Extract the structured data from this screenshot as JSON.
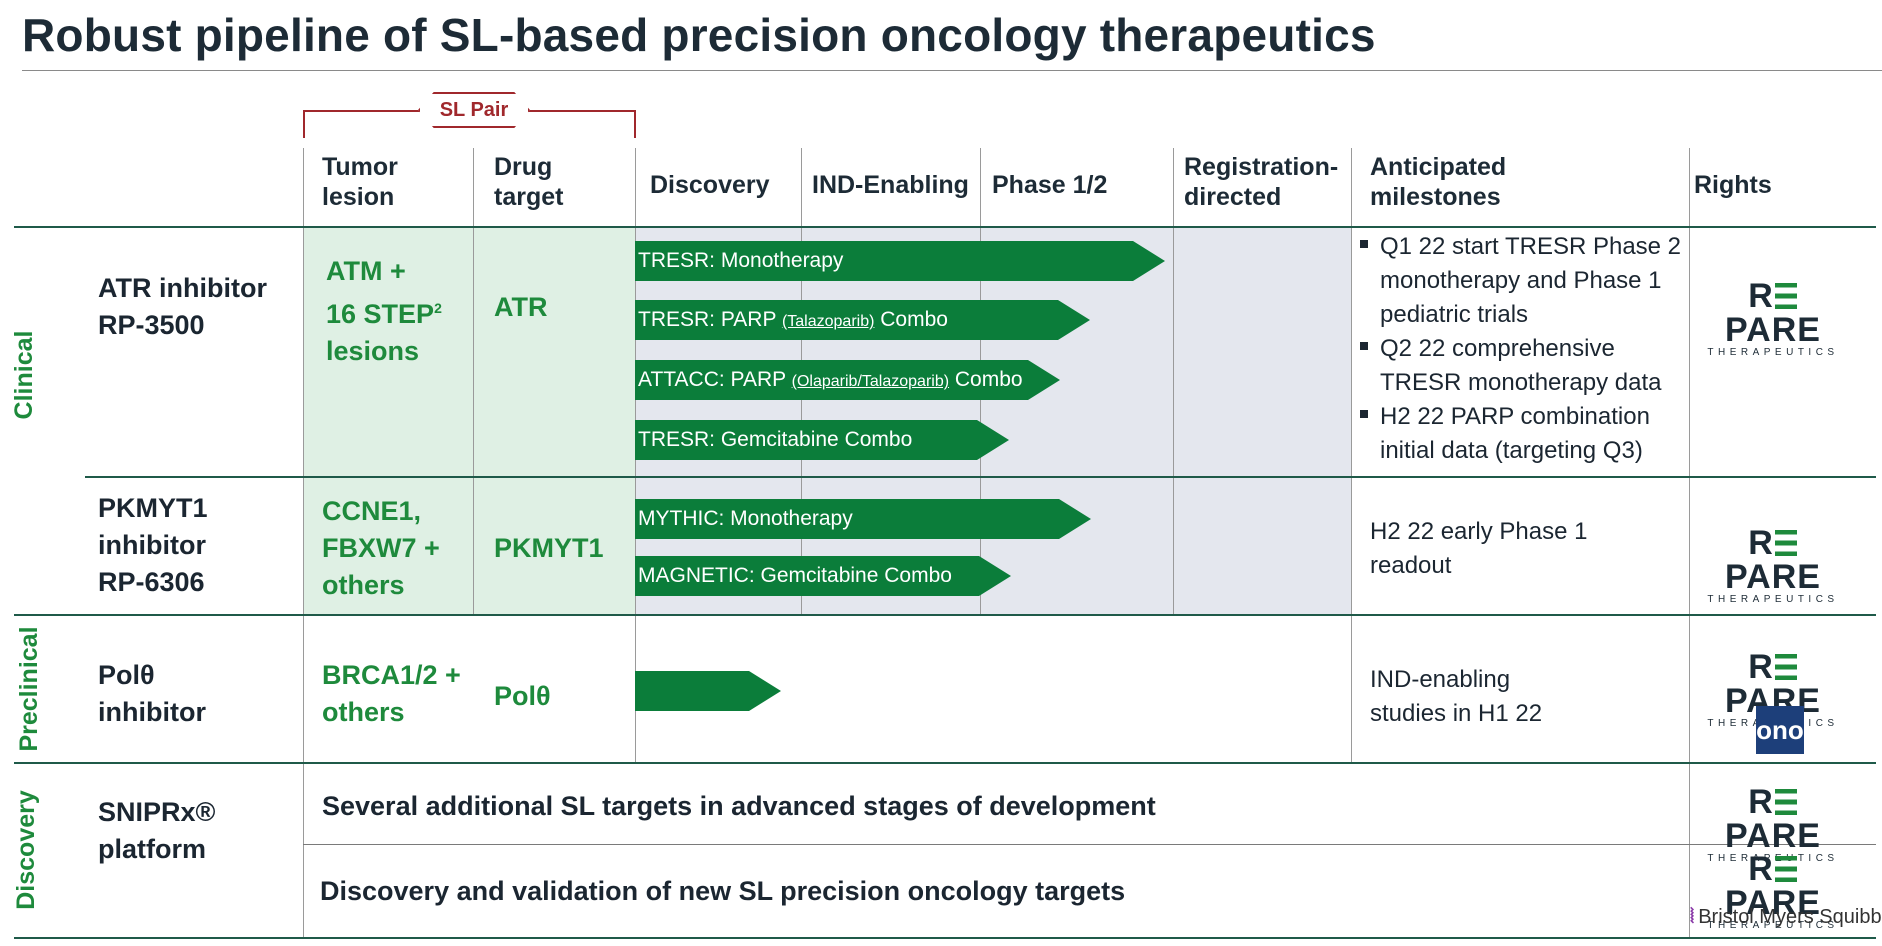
{
  "title": "Robust pipeline of SL-based precision oncology therapeutics",
  "sl_pair_label": "SL Pair",
  "headers": {
    "tumor_lesion": [
      "Tumor",
      "lesion"
    ],
    "drug_target": [
      "Drug",
      "target"
    ],
    "discovery": "Discovery",
    "ind_enabling": "IND-Enabling",
    "phase12": "Phase 1/2",
    "registration": [
      "Registration-",
      "directed"
    ],
    "milestones": [
      "Anticipated",
      "milestones"
    ],
    "rights": "Rights"
  },
  "sections": {
    "clinical": "Clinical",
    "preclinical": "Preclinical",
    "discovery": "Discovery"
  },
  "rows": {
    "atr": {
      "program": [
        "ATR inhibitor",
        "RP-3500"
      ],
      "tumor": [
        "ATM +",
        "16 STEP",
        "lesions"
      ],
      "tumor_sup": "2",
      "target": "ATR",
      "arrows": [
        {
          "label": "TRESR: Monotherapy",
          "small": "",
          "suffix": ""
        },
        {
          "label": "TRESR: PARP ",
          "small": "(Talazoparib)",
          "suffix": " Combo"
        },
        {
          "label": "ATTACC: PARP ",
          "small": "(Olaparib/Talazoparib)",
          "suffix": " Combo"
        },
        {
          "label": "TRESR: Gemcitabine Combo",
          "small": "",
          "suffix": ""
        }
      ],
      "milestones": [
        [
          "Q1 22 start TRESR Phase 2",
          "monotherapy and Phase 1",
          "pediatric trials"
        ],
        [
          "Q2 22 comprehensive",
          "TRESR monotherapy data"
        ],
        [
          "H2 22 PARP combination",
          "initial data (targeting Q3)"
        ]
      ]
    },
    "pkmyt1": {
      "program": [
        "PKMYT1",
        "inhibitor",
        "RP-6306"
      ],
      "tumor": [
        "CCNE1,",
        "FBXW7 +",
        "others"
      ],
      "target": "PKMYT1",
      "arrows": [
        {
          "label": "MYTHIC: Monotherapy"
        },
        {
          "label": "MAGNETIC: Gemcitabine Combo"
        }
      ],
      "milestones": [
        "H2 22 early Phase 1",
        "readout"
      ]
    },
    "polq": {
      "program": [
        "Polθ",
        "inhibitor"
      ],
      "tumor": [
        "BRCA1/2 +",
        "others"
      ],
      "target": "Polθ",
      "milestones": [
        "IND-enabling",
        "studies in H1 22"
      ]
    },
    "sniprx": {
      "program": [
        "SNIPRx®",
        "platform"
      ],
      "band1": "Several additional SL targets in advanced stages of development",
      "band2": "Discovery and validation of new SL precision oncology targets"
    }
  },
  "logos": {
    "repare_main_pre": "R",
    "repare_main_post": "PARE",
    "repare_sub": "THERAPEUTICS",
    "ono": "ono",
    "bms": "Bristol Myers Squibb"
  },
  "colors": {
    "green_text": "#1e8a3c",
    "arrow_green": "#0b7d3a",
    "lesion_bg": "#dff0e4",
    "phase_bg": "#e4e7ee",
    "accent_red": "#a0282c",
    "title": "#1d2b36"
  }
}
